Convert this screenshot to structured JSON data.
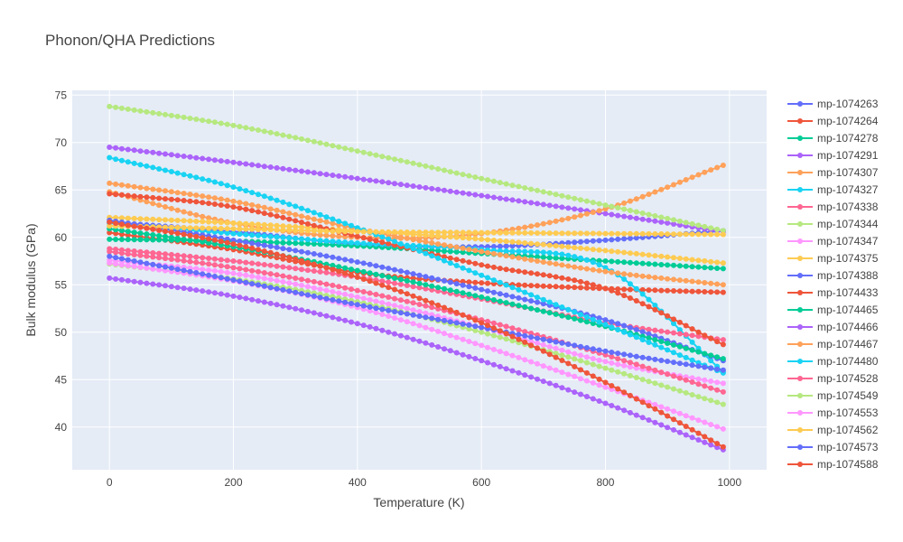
{
  "chart_data": {
    "type": "line",
    "title": "Phonon/QHA Predictions",
    "xlabel": "Temperature (K)",
    "ylabel": "Bulk modulus (GPa)",
    "xlim": [
      -60,
      1060
    ],
    "ylim": [
      35.5,
      75.5
    ],
    "x_ticks": [
      0,
      200,
      400,
      600,
      800,
      1000
    ],
    "y_ticks": [
      40,
      45,
      50,
      55,
      60,
      65,
      70,
      75
    ],
    "x_start": 0,
    "x_end": 990,
    "x_step": 10,
    "grid": true,
    "legend_position": "right",
    "series": [
      {
        "name": "mp-1074263",
        "color": "#636efa",
        "anchors": [
          [
            0,
            61.6
          ],
          [
            200,
            60.6
          ],
          [
            400,
            59.3
          ],
          [
            600,
            59.0
          ],
          [
            800,
            59.7
          ],
          [
            990,
            60.7
          ]
        ]
      },
      {
        "name": "mp-1074264",
        "color": "#EF553B",
        "anchors": [
          [
            0,
            60.5
          ],
          [
            200,
            58.7
          ],
          [
            400,
            56.3
          ],
          [
            600,
            55.2
          ],
          [
            800,
            54.6
          ],
          [
            990,
            54.2
          ]
        ]
      },
      {
        "name": "mp-1074278",
        "color": "#00cc96",
        "anchors": [
          [
            0,
            59.8
          ],
          [
            200,
            59.6
          ],
          [
            400,
            59.1
          ],
          [
            600,
            58.3
          ],
          [
            800,
            57.5
          ],
          [
            990,
            56.7
          ]
        ]
      },
      {
        "name": "mp-1074291",
        "color": "#ab63fa",
        "anchors": [
          [
            0,
            69.5
          ],
          [
            200,
            67.9
          ],
          [
            400,
            66.2
          ],
          [
            600,
            64.4
          ],
          [
            800,
            62.5
          ],
          [
            990,
            60.6
          ]
        ]
      },
      {
        "name": "mp-1074307",
        "color": "#FFA15A",
        "anchors": [
          [
            0,
            64.8
          ],
          [
            200,
            61.5
          ],
          [
            400,
            60.0
          ],
          [
            600,
            60.4
          ],
          [
            800,
            63.0
          ],
          [
            990,
            67.6
          ]
        ]
      },
      {
        "name": "mp-1074327",
        "color": "#19d3f3",
        "anchors": [
          [
            0,
            61.5
          ],
          [
            200,
            60.4
          ],
          [
            400,
            59.4
          ],
          [
            600,
            58.7
          ],
          [
            800,
            56.8
          ],
          [
            990,
            45.8
          ]
        ]
      },
      {
        "name": "mp-1074338",
        "color": "#FF6692",
        "anchors": [
          [
            0,
            58.8
          ],
          [
            200,
            57.5
          ],
          [
            400,
            55.8
          ],
          [
            600,
            53.5
          ],
          [
            800,
            51.0
          ],
          [
            990,
            49.2
          ]
        ]
      },
      {
        "name": "mp-1074344",
        "color": "#B6E880",
        "anchors": [
          [
            0,
            73.8
          ],
          [
            200,
            71.8
          ],
          [
            400,
            69.1
          ],
          [
            600,
            66.2
          ],
          [
            800,
            63.4
          ],
          [
            990,
            60.7
          ]
        ]
      },
      {
        "name": "mp-1074347",
        "color": "#FF97FF",
        "anchors": [
          [
            0,
            57.6
          ],
          [
            200,
            56.2
          ],
          [
            400,
            53.7
          ],
          [
            600,
            50.5
          ],
          [
            800,
            46.9
          ],
          [
            990,
            44.6
          ]
        ]
      },
      {
        "name": "mp-1074375",
        "color": "#FECB52",
        "anchors": [
          [
            0,
            62.1
          ],
          [
            200,
            61.5
          ],
          [
            400,
            60.7
          ],
          [
            600,
            59.8
          ],
          [
            800,
            58.6
          ],
          [
            990,
            57.3
          ]
        ]
      },
      {
        "name": "mp-1074388",
        "color": "#636efa",
        "anchors": [
          [
            0,
            61.8
          ],
          [
            200,
            59.7
          ],
          [
            400,
            57.4
          ],
          [
            600,
            54.5
          ],
          [
            800,
            51.3
          ],
          [
            990,
            47.0
          ]
        ]
      },
      {
        "name": "mp-1074433",
        "color": "#EF553B",
        "anchors": [
          [
            0,
            64.6
          ],
          [
            200,
            63.2
          ],
          [
            400,
            60.1
          ],
          [
            600,
            57.1
          ],
          [
            800,
            54.6
          ],
          [
            990,
            48.7
          ]
        ]
      },
      {
        "name": "mp-1074465",
        "color": "#00cc96",
        "anchors": [
          [
            0,
            60.9
          ],
          [
            200,
            59.0
          ],
          [
            400,
            56.5
          ],
          [
            600,
            53.7
          ],
          [
            800,
            50.6
          ],
          [
            990,
            47.2
          ]
        ]
      },
      {
        "name": "mp-1074466",
        "color": "#ab63fa",
        "anchors": [
          [
            0,
            55.7
          ],
          [
            200,
            53.8
          ],
          [
            400,
            50.9
          ],
          [
            600,
            47.0
          ],
          [
            800,
            42.5
          ],
          [
            990,
            37.6
          ]
        ]
      },
      {
        "name": "mp-1074467",
        "color": "#FFA15A",
        "anchors": [
          [
            0,
            65.7
          ],
          [
            200,
            63.8
          ],
          [
            400,
            60.9
          ],
          [
            600,
            58.5
          ],
          [
            800,
            56.4
          ],
          [
            990,
            55.0
          ]
        ]
      },
      {
        "name": "mp-1074480",
        "color": "#19d3f3",
        "anchors": [
          [
            0,
            68.4
          ],
          [
            200,
            65.3
          ],
          [
            400,
            61.0
          ],
          [
            600,
            56.0
          ],
          [
            800,
            50.8
          ],
          [
            990,
            45.7
          ]
        ]
      },
      {
        "name": "mp-1074528",
        "color": "#FF6692",
        "anchors": [
          [
            0,
            58.5
          ],
          [
            200,
            56.8
          ],
          [
            400,
            54.4
          ],
          [
            600,
            51.3
          ],
          [
            800,
            47.6
          ],
          [
            990,
            43.7
          ]
        ]
      },
      {
        "name": "mp-1074549",
        "color": "#B6E880",
        "anchors": [
          [
            0,
            57.2
          ],
          [
            200,
            55.6
          ],
          [
            400,
            53.2
          ],
          [
            600,
            50.0
          ],
          [
            800,
            46.2
          ],
          [
            990,
            42.4
          ]
        ]
      },
      {
        "name": "mp-1074553",
        "color": "#FF97FF",
        "anchors": [
          [
            0,
            57.3
          ],
          [
            200,
            55.4
          ],
          [
            400,
            52.6
          ],
          [
            600,
            48.6
          ],
          [
            800,
            44.2
          ],
          [
            990,
            39.8
          ]
        ]
      },
      {
        "name": "mp-1074562",
        "color": "#FECB52",
        "anchors": [
          [
            0,
            61.2
          ],
          [
            200,
            60.9
          ],
          [
            400,
            60.6
          ],
          [
            600,
            60.5
          ],
          [
            800,
            60.4
          ],
          [
            990,
            60.3
          ]
        ]
      },
      {
        "name": "mp-1074573",
        "color": "#636efa",
        "anchors": [
          [
            0,
            58.0
          ],
          [
            200,
            55.5
          ],
          [
            400,
            52.9
          ],
          [
            600,
            50.5
          ],
          [
            800,
            48.0
          ],
          [
            990,
            46.0
          ]
        ]
      },
      {
        "name": "mp-1074588",
        "color": "#EF553B",
        "anchors": [
          [
            0,
            61.6
          ],
          [
            200,
            59.3
          ],
          [
            400,
            55.8
          ],
          [
            600,
            51.0
          ],
          [
            800,
            44.7
          ],
          [
            990,
            37.9
          ]
        ]
      }
    ]
  }
}
